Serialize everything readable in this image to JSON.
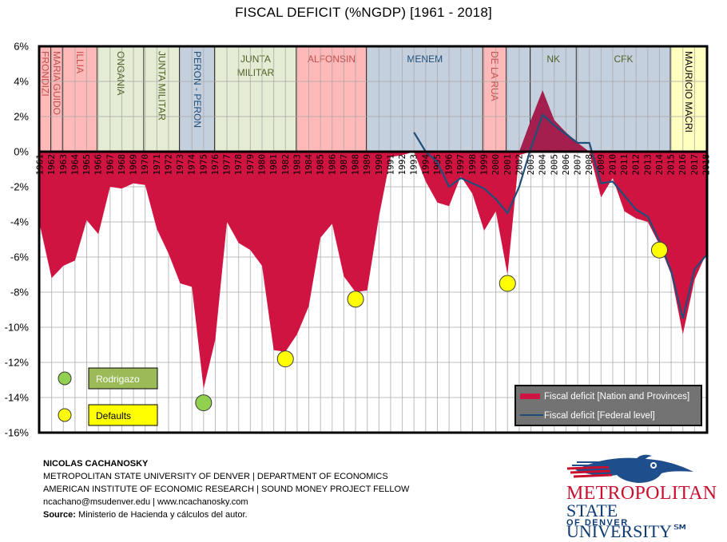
{
  "chart_data": {
    "type": "area",
    "title": "FISCAL DEFICIT (%NGDP) [1961 - 2018]",
    "xlabel": "",
    "ylabel": "",
    "ylim": [
      -16,
      6
    ],
    "yticks": [
      6,
      4,
      2,
      0,
      -2,
      -4,
      -6,
      -8,
      -10,
      -12,
      -14,
      -16
    ],
    "ytick_labels": [
      "6%",
      "4%",
      "2%",
      "0%",
      "-2%",
      "-4%",
      "-6%",
      "-8%",
      "-10%",
      "-12%",
      "-14%",
      "-16%"
    ],
    "grid": true,
    "x": [
      1961,
      1962,
      1963,
      1964,
      1965,
      1966,
      1967,
      1968,
      1969,
      1970,
      1971,
      1972,
      1973,
      1974,
      1975,
      1976,
      1977,
      1978,
      1979,
      1980,
      1981,
      1982,
      1983,
      1984,
      1985,
      1986,
      1987,
      1988,
      1989,
      1990,
      1991,
      1992,
      1993,
      1994,
      1995,
      1996,
      1997,
      1998,
      1999,
      2000,
      2001,
      2002,
      2003,
      2004,
      2005,
      2006,
      2007,
      2008,
      2009,
      2010,
      2011,
      2012,
      2013,
      2014,
      2015,
      2016,
      2017,
      2018
    ],
    "series": [
      {
        "name": "Fiscal deficit [Nation and Provinces]",
        "kind": "area",
        "color": "#d01442",
        "surplus_color": "#a31f4e",
        "values": [
          -4.2,
          -7.2,
          -6.5,
          -6.2,
          -3.9,
          -4.7,
          -2.0,
          -2.1,
          -1.8,
          -1.9,
          -4.4,
          -5.8,
          -7.5,
          -7.7,
          -13.5,
          -10.7,
          -4.0,
          -5.2,
          -5.6,
          -6.5,
          -11.3,
          -11.4,
          -10.4,
          -8.8,
          -4.9,
          -4.1,
          -7.1,
          -8.0,
          -7.9,
          -3.7,
          -0.3,
          -0.2,
          0.0,
          -1.7,
          -2.9,
          -3.1,
          -1.4,
          -2.4,
          -4.5,
          -3.4,
          -7.0,
          -0.2,
          1.8,
          3.5,
          1.8,
          1.1,
          0.5,
          0.0,
          -2.6,
          -1.5,
          -3.4,
          -3.8,
          -4.0,
          -5.3,
          -7.0,
          -10.4,
          -7.3,
          -5.8
        ]
      },
      {
        "name": "Fiscal deficit [Federal level]",
        "kind": "line",
        "color": "#1f4e79",
        "start_year": 1993,
        "values": [
          1.1,
          0.0,
          -0.6,
          -2.0,
          -1.5,
          -1.8,
          -2.1,
          -2.7,
          -3.5,
          -2.0,
          0.2,
          2.1,
          1.5,
          1.0,
          0.5,
          0.5,
          -1.8,
          -1.7,
          -2.5,
          -3.3,
          -3.7,
          -5.1,
          -6.8,
          -9.5,
          -6.7,
          -5.9
        ]
      }
    ],
    "markers": [
      {
        "label": "Rodrigazo",
        "year": 1975,
        "value": -14.3,
        "color": "#92d050"
      },
      {
        "label": "Defaults",
        "year": 1982,
        "value": -11.8,
        "color": "#ffff00"
      },
      {
        "label": "Defaults",
        "year": 1988,
        "value": -8.4,
        "color": "#ffff00"
      },
      {
        "label": "Defaults",
        "year": 2001,
        "value": -7.5,
        "color": "#ffff00"
      },
      {
        "label": "Defaults",
        "year": 2014,
        "value": -5.6,
        "color": "#ffff00"
      }
    ],
    "periods": [
      {
        "label": "FRONDIZI",
        "from": 1960.95,
        "to": 1961.95,
        "color": "#ffb9b9",
        "text_color": "#c0504d",
        "vertical": true
      },
      {
        "label": "MARIA GUIDO",
        "from": 1961.95,
        "to": 1962.95,
        "color": "#ffb9b9",
        "text_color": "#c0504d",
        "vertical": true
      },
      {
        "label": "ILLIA",
        "from": 1962.95,
        "to": 1965.9,
        "color": "#ffb9b9",
        "text_color": "#c0504d",
        "vertical": true
      },
      {
        "label": "ONGANIA",
        "from": 1965.9,
        "to": 1969.9,
        "color": "#e4ecd4",
        "text_color": "#4f6228",
        "vertical": true
      },
      {
        "label": "JUNTA MILITAR",
        "from": 1969.9,
        "to": 1972.95,
        "color": "#e4ecd4",
        "text_color": "#4f6228",
        "vertical": true
      },
      {
        "label": "PERON - PERON",
        "from": 1972.95,
        "to": 1975.95,
        "color": "#c5d0de",
        "text_color": "#1f4e79",
        "vertical": true
      },
      {
        "label": "JUNTA MILITAR",
        "from": 1975.95,
        "to": 1982.95,
        "color": "#e4ecd4",
        "text_color": "#4f6228",
        "vertical": false
      },
      {
        "label": "ALFONSIN",
        "from": 1982.95,
        "to": 1988.95,
        "color": "#ffb9b9",
        "text_color": "#c0504d",
        "vertical": false
      },
      {
        "label": "MENEM",
        "from": 1988.95,
        "to": 1998.9,
        "color": "#c5d0de",
        "text_color": "#1f4e79",
        "vertical": false
      },
      {
        "label": "DE LA RUA",
        "from": 1998.9,
        "to": 2000.9,
        "color": "#ffb9b9",
        "text_color": "#c0504d",
        "vertical": true
      },
      {
        "label": "",
        "from": 2000.9,
        "to": 2002.95,
        "color": "#c5d0de",
        "text_color": "#1f4e79",
        "vertical": false
      },
      {
        "label": "NK",
        "from": 2002.95,
        "to": 2006.9,
        "color": "#c5d0de",
        "text_color": "#4f6228",
        "vertical": false
      },
      {
        "label": "CFK",
        "from": 2006.9,
        "to": 2014.95,
        "color": "#c5d0de",
        "text_color": "#4f6228",
        "vertical": false
      },
      {
        "label": "MAURICIO MACRI",
        "from": 2014.95,
        "to": 2018.05,
        "color": "#ffffc0",
        "text_color": "#000000",
        "vertical": true
      }
    ],
    "legend": {
      "placement": "bottom-right",
      "entries": [
        {
          "label": "Fiscal deficit [Nation and Provinces]",
          "kind": "area",
          "color": "#d01442"
        },
        {
          "label": "Fiscal deficit [Federal level]",
          "kind": "line",
          "color": "#1f4e79"
        }
      ]
    },
    "marker_legend": {
      "placement": "bottom-left",
      "entries": [
        {
          "label": "Rodrigazo",
          "color": "#92d050",
          "box_color": "#9bbb59",
          "text_color": "#ffffff"
        },
        {
          "label": "Defaults",
          "color": "#ffff00",
          "box_color": "#ffff00",
          "text_color": "#000000"
        }
      ]
    }
  },
  "footer": {
    "author": "NICOLAS CACHANOSKY",
    "line1": "METROPOLITAN  STATE UNIVERSITY  OF DENVER  | DEPARTMENT  OF ECONOMICS",
    "line2": "AMERICAN  INSTITUTE  OF ECONOMIC RESEARCH  | SOUND  MONEY  PROJECT FELLOW",
    "line3": "ncachano@msudenver.edu | www.ncachanosky.com",
    "source_label": "Source:",
    "source_text": " Ministerio de Hacienda y cálculos del autor."
  },
  "logo": {
    "line1": "METROPOLITAN",
    "line2": "STATE UNIVERSITY℠",
    "line3": "OF DENVER",
    "icon": "roadrunner-icon"
  }
}
